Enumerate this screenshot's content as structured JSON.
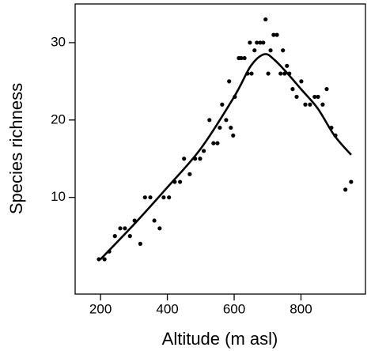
{
  "chart_data": {
    "type": "scatter",
    "xlabel": "Altitude (m asl)",
    "ylabel": "Species richness",
    "x": [
      195,
      212,
      226,
      243,
      259,
      273,
      288,
      302,
      319,
      333,
      349,
      361,
      377,
      389,
      405,
      422,
      438,
      450,
      467,
      483,
      498,
      509,
      526,
      538,
      550,
      557,
      564,
      576,
      585,
      590,
      597,
      602,
      614,
      621,
      631,
      640,
      647,
      652,
      661,
      668,
      678,
      687,
      694,
      702,
      709,
      718,
      728,
      739,
      746,
      751,
      758,
      765,
      775,
      787,
      801,
      813,
      827,
      841,
      851,
      865,
      877,
      891,
      903,
      933,
      950
    ],
    "values": [
      2,
      2,
      3,
      5,
      6,
      6,
      5,
      7,
      4,
      10,
      10,
      7,
      6,
      10,
      10,
      12,
      12,
      15,
      13,
      15,
      15,
      16,
      20,
      17,
      17,
      19,
      22,
      20,
      25,
      19,
      18,
      23,
      28,
      28,
      28,
      26,
      30,
      26,
      29,
      30,
      30,
      30,
      33,
      26,
      29,
      31,
      31,
      26,
      29,
      26,
      27,
      26,
      24,
      23,
      25,
      22,
      22,
      23,
      23,
      22,
      24,
      19,
      18,
      11,
      12
    ],
    "color": "#000000",
    "smooth": {
      "x": [
        200,
        300,
        400,
        500,
        600,
        650,
        690,
        720,
        760,
        800,
        850,
        900,
        950
      ],
      "y": [
        2,
        6.5,
        11.3,
        16.3,
        23,
        27,
        28.5,
        27.8,
        26,
        24,
        21.5,
        18,
        15.5
      ]
    },
    "xlim": [
      124,
      993
    ],
    "ylim": [
      -2.5,
      35
    ],
    "xticks": [
      200,
      400,
      600,
      800
    ],
    "yticks": [
      10,
      20,
      30
    ]
  }
}
